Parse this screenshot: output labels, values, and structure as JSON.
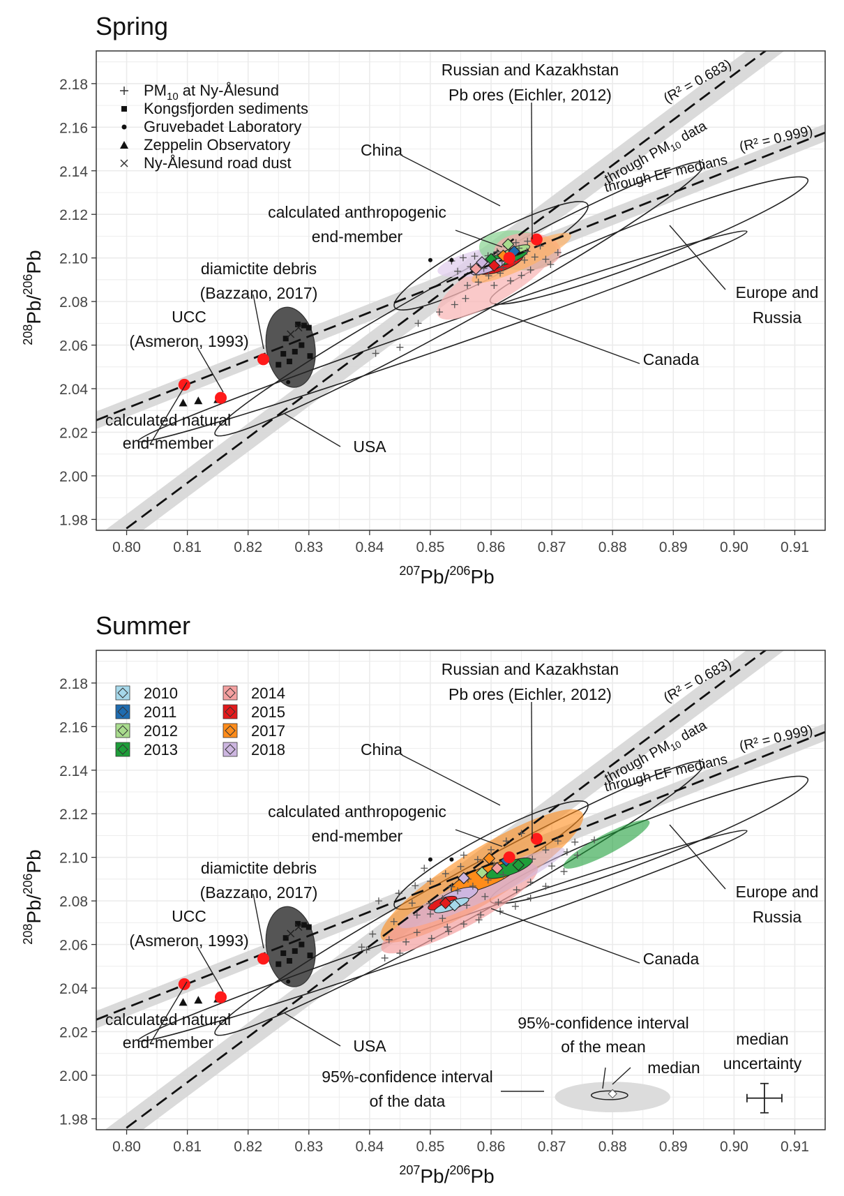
{
  "chart_data": [
    {
      "type": "scatter",
      "title": "Spring",
      "xlabel": "207Pb/206Pb",
      "ylabel": "208Pb/206Pb",
      "xlim": [
        0.795,
        0.915
      ],
      "ylim": [
        1.975,
        2.195
      ],
      "xticks": [
        0.8,
        0.81,
        0.82,
        0.83,
        0.84,
        0.85,
        0.86,
        0.87,
        0.88,
        0.89,
        0.9,
        0.91
      ],
      "xtick_labels": [
        "0.80",
        "0.81",
        "0.82",
        "0.83",
        "0.84",
        "0.85",
        "0.86",
        "0.87",
        "0.88",
        "0.89",
        "0.90",
        "0.91"
      ],
      "yticks": [
        1.98,
        2.0,
        2.02,
        2.04,
        2.06,
        2.08,
        2.1,
        2.12,
        2.14,
        2.16,
        2.18
      ],
      "ytick_labels": [
        "1.98",
        "2.00",
        "2.02",
        "2.04",
        "2.06",
        "2.08",
        "2.10",
        "2.12",
        "2.14",
        "2.16",
        "2.18"
      ],
      "grid": true,
      "legend_position": "top-left",
      "legend": [
        {
          "marker": "+",
          "label": "PM10 at Ny-Ålesund"
        },
        {
          "marker": "■",
          "label": "Kongsfjorden sediments"
        },
        {
          "marker": "●",
          "label": "Gruvebadet Laboratory"
        },
        {
          "marker": "▲",
          "label": "Zeppelin Observatory"
        },
        {
          "marker": "×",
          "label": "Ny-Ålesund road dust"
        }
      ],
      "fits": [
        {
          "name": "through PM10 data",
          "r2_text": "(R² = 0.683)",
          "x": [
            0.795,
            0.915
          ],
          "y": [
            1.9655,
            2.2155
          ]
        },
        {
          "name": "through EF medians",
          "r2_text": "(R² = 0.999)",
          "x": [
            0.795,
            0.915
          ],
          "y": [
            2.0255,
            2.1575
          ]
        }
      ],
      "reference_points": [
        {
          "name": "calculated natural end-member",
          "x": 0.8095,
          "y": 2.0418
        },
        {
          "name": "UCC (Asmeron, 1993)",
          "x": 0.8155,
          "y": 2.0358
        },
        {
          "name": "diamictite debris (Bazzano, 2017)",
          "x": 0.8225,
          "y": 2.0535
        },
        {
          "name": "calculated anthropogenic end-member",
          "x": 0.863,
          "y": 2.1
        },
        {
          "name": "Russian and Kazakhstan Pb ores (Eichler, 2012)",
          "x": 0.8675,
          "y": 2.1085
        }
      ],
      "annotations": [
        {
          "name": "china",
          "text": "China"
        },
        {
          "name": "anthro1",
          "text": "calculated anthropogenic"
        },
        {
          "name": "anthro2",
          "text": "end-member"
        },
        {
          "name": "russ1",
          "text": "Russian and Kazakhstan"
        },
        {
          "name": "russ2",
          "text": "Pb ores (Eichler, 2012)"
        },
        {
          "name": "diam1",
          "text": "diamictite debris"
        },
        {
          "name": "diam2",
          "text": "(Bazzano, 2017)"
        },
        {
          "name": "ucc1",
          "text": "UCC"
        },
        {
          "name": "ucc2",
          "text": "(Asmeron, 1993)"
        },
        {
          "name": "nat1",
          "text": "calculated natural"
        },
        {
          "name": "nat2",
          "text": "end-member"
        },
        {
          "name": "usa",
          "text": "USA"
        },
        {
          "name": "canada",
          "text": "Canada"
        },
        {
          "name": "eur1",
          "text": "Europe and"
        },
        {
          "name": "eur2",
          "text": "Russia"
        }
      ],
      "pm10_points": [
        [
          0.8535,
          2.0986
        ],
        [
          0.8554,
          2.1001
        ],
        [
          0.8573,
          2.1008
        ],
        [
          0.8595,
          2.101
        ],
        [
          0.861,
          2.1028
        ],
        [
          0.8632,
          2.1036
        ],
        [
          0.8646,
          2.1045
        ],
        [
          0.8618,
          2.0984
        ],
        [
          0.8601,
          2.0972
        ],
        [
          0.8588,
          2.0952
        ],
        [
          0.8566,
          2.096
        ],
        [
          0.8545,
          2.0939
        ],
        [
          0.8625,
          2.1063
        ],
        [
          0.8659,
          2.103
        ],
        [
          0.8672,
          2.1004
        ],
        [
          0.869,
          2.0994
        ],
        [
          0.8681,
          2.1055
        ],
        [
          0.866,
          2.1077
        ],
        [
          0.8641,
          2.107
        ],
        [
          0.8615,
          2.093
        ],
        [
          0.8596,
          2.0918
        ],
        [
          0.8579,
          2.0889
        ],
        [
          0.8561,
          2.0874
        ],
        [
          0.8605,
          2.0874
        ],
        [
          0.8632,
          2.0895
        ],
        [
          0.865,
          2.092
        ],
        [
          0.8665,
          2.0945
        ],
        [
          0.8558,
          2.0814
        ],
        [
          0.854,
          2.0786
        ],
        [
          0.8515,
          2.0752
        ],
        [
          0.848,
          2.07
        ],
        [
          0.845,
          2.059
        ],
        [
          0.841,
          2.0562
        ],
        [
          0.8698,
          2.097
        ],
        [
          0.871,
          2.1025
        ],
        [
          0.8576,
          2.0922
        ],
        [
          0.862,
          2.0955
        ],
        [
          0.8638,
          2.0988
        ],
        [
          0.8655,
          2.099
        ],
        [
          0.8604,
          2.1012
        ]
      ]
    },
    {
      "type": "scatter",
      "title": "Summer",
      "xlabel": "207Pb/206Pb",
      "ylabel": "208Pb/206Pb",
      "xlim": [
        0.795,
        0.915
      ],
      "ylim": [
        1.975,
        2.195
      ],
      "xticks": [
        0.8,
        0.81,
        0.82,
        0.83,
        0.84,
        0.85,
        0.86,
        0.87,
        0.88,
        0.89,
        0.9,
        0.91
      ],
      "xtick_labels": [
        "0.80",
        "0.81",
        "0.82",
        "0.83",
        "0.84",
        "0.85",
        "0.86",
        "0.87",
        "0.88",
        "0.89",
        "0.90",
        "0.91"
      ],
      "yticks": [
        1.98,
        2.0,
        2.02,
        2.04,
        2.06,
        2.08,
        2.1,
        2.12,
        2.14,
        2.16,
        2.18
      ],
      "ytick_labels": [
        "1.98",
        "2.00",
        "2.02",
        "2.04",
        "2.06",
        "2.08",
        "2.10",
        "2.12",
        "2.14",
        "2.16",
        "2.18"
      ],
      "grid": true,
      "legend_position": "top-left",
      "year_legend": [
        {
          "label": "2010",
          "color": "#a6d8ea"
        },
        {
          "label": "2011",
          "color": "#1f6cb0"
        },
        {
          "label": "2012",
          "color": "#a9dc8e"
        },
        {
          "label": "2013",
          "color": "#1e9e3a"
        },
        {
          "label": "2014",
          "color": "#f4a0a0"
        },
        {
          "label": "2015",
          "color": "#e31a1c"
        },
        {
          "label": "2017",
          "color": "#ff8c1a"
        },
        {
          "label": "2018",
          "color": "#cdb6e0"
        }
      ],
      "fits": [
        {
          "name": "through PM10 data",
          "r2_text": "(R² = 0.683)",
          "x": [
            0.795,
            0.915
          ],
          "y": [
            1.9655,
            2.2155
          ]
        },
        {
          "name": "through EF medians",
          "r2_text": "(R² = 0.999)",
          "x": [
            0.795,
            0.915
          ],
          "y": [
            2.0255,
            2.1575
          ]
        }
      ],
      "reference_points": [
        {
          "name": "calculated natural end-member",
          "x": 0.8095,
          "y": 2.0418
        },
        {
          "name": "UCC (Asmeron, 1993)",
          "x": 0.8155,
          "y": 2.0358
        },
        {
          "name": "diamictite debris (Bazzano, 2017)",
          "x": 0.8225,
          "y": 2.0535
        },
        {
          "name": "calculated anthropogenic end-member",
          "x": 0.863,
          "y": 2.1
        },
        {
          "name": "Russian and Kazakhstan Pb ores (Eichler, 2012)",
          "x": 0.8675,
          "y": 2.1085
        }
      ],
      "annotations": [
        {
          "name": "china",
          "text": "China"
        },
        {
          "name": "anthro1",
          "text": "calculated anthropogenic"
        },
        {
          "name": "anthro2",
          "text": "end-member"
        },
        {
          "name": "russ1",
          "text": "Russian and Kazakhstan"
        },
        {
          "name": "russ2",
          "text": "Pb ores (Eichler, 2012)"
        },
        {
          "name": "diam1",
          "text": "diamictite debris"
        },
        {
          "name": "diam2",
          "text": "(Bazzano, 2017)"
        },
        {
          "name": "ucc1",
          "text": "UCC"
        },
        {
          "name": "ucc2",
          "text": "(Asmeron, 1993)"
        },
        {
          "name": "nat1",
          "text": "calculated natural"
        },
        {
          "name": "nat2",
          "text": "end-member"
        },
        {
          "name": "usa",
          "text": "USA"
        },
        {
          "name": "canada",
          "text": "Canada"
        },
        {
          "name": "eur1",
          "text": "Europe and"
        },
        {
          "name": "eur2",
          "text": "Russia"
        }
      ],
      "key_annotations": [
        {
          "name": "ci-mean-1",
          "text": "95%-confidence interval"
        },
        {
          "name": "ci-mean-2",
          "text": "of the mean"
        },
        {
          "name": "median",
          "text": "median"
        },
        {
          "name": "ci-data-1",
          "text": "95%-confidence interval"
        },
        {
          "name": "ci-data-2",
          "text": "of the data"
        },
        {
          "name": "unc-1",
          "text": "median"
        },
        {
          "name": "unc-2",
          "text": "uncertainty"
        }
      ],
      "pm10_points": [
        [
          0.845,
          2.056
        ],
        [
          0.8425,
          2.0538
        ],
        [
          0.8395,
          2.0575
        ],
        [
          0.8405,
          2.0648
        ],
        [
          0.8432,
          2.0622
        ],
        [
          0.846,
          2.0612
        ],
        [
          0.8478,
          2.0655
        ],
        [
          0.8502,
          2.0628
        ],
        [
          0.853,
          2.066
        ],
        [
          0.8555,
          2.0694
        ],
        [
          0.858,
          2.0713
        ],
        [
          0.8615,
          2.0753
        ],
        [
          0.864,
          2.0775
        ],
        [
          0.8665,
          2.0813
        ],
        [
          0.869,
          2.0867
        ],
        [
          0.872,
          2.0935
        ],
        [
          0.8742,
          2.101
        ],
        [
          0.8738,
          2.107
        ],
        [
          0.8478,
          2.0735
        ],
        [
          0.8499,
          2.0788
        ],
        [
          0.852,
          2.081
        ],
        [
          0.8545,
          2.0846
        ],
        [
          0.857,
          2.0868
        ],
        [
          0.8595,
          2.0896
        ],
        [
          0.862,
          2.092
        ],
        [
          0.8645,
          2.0955
        ],
        [
          0.8668,
          2.0992
        ],
        [
          0.869,
          2.1034
        ],
        [
          0.871,
          2.1075
        ],
        [
          0.8415,
          2.08
        ],
        [
          0.8448,
          2.0835
        ],
        [
          0.8475,
          2.087
        ],
        [
          0.85,
          2.089
        ],
        [
          0.8525,
          2.0925
        ],
        [
          0.855,
          2.0958
        ],
        [
          0.8578,
          2.099
        ],
        [
          0.86,
          2.1035
        ],
        [
          0.8625,
          2.1075
        ],
        [
          0.865,
          2.111
        ],
        [
          0.8583,
          2.0736
        ],
        [
          0.8612,
          2.0794
        ],
        [
          0.8642,
          2.0851
        ],
        [
          0.8665,
          2.0886
        ],
        [
          0.852,
          2.072
        ],
        [
          0.856,
          2.078
        ],
        [
          0.859,
          2.082
        ],
        [
          0.847,
          2.079
        ],
        [
          0.85,
          2.074
        ],
        [
          0.8535,
          2.0865
        ],
        [
          0.8562,
          2.09
        ],
        [
          0.8605,
          2.0965
        ],
        [
          0.863,
          2.101
        ],
        [
          0.87,
          2.096
        ],
        [
          0.8725,
          2.1025
        ],
        [
          0.844,
          2.0705
        ],
        [
          0.8387,
          2.0588
        ],
        [
          0.877,
          2.108
        ],
        [
          0.849,
          2.095
        ],
        [
          0.8555,
          2.101
        ],
        [
          0.8528,
          2.068
        ]
      ]
    }
  ]
}
